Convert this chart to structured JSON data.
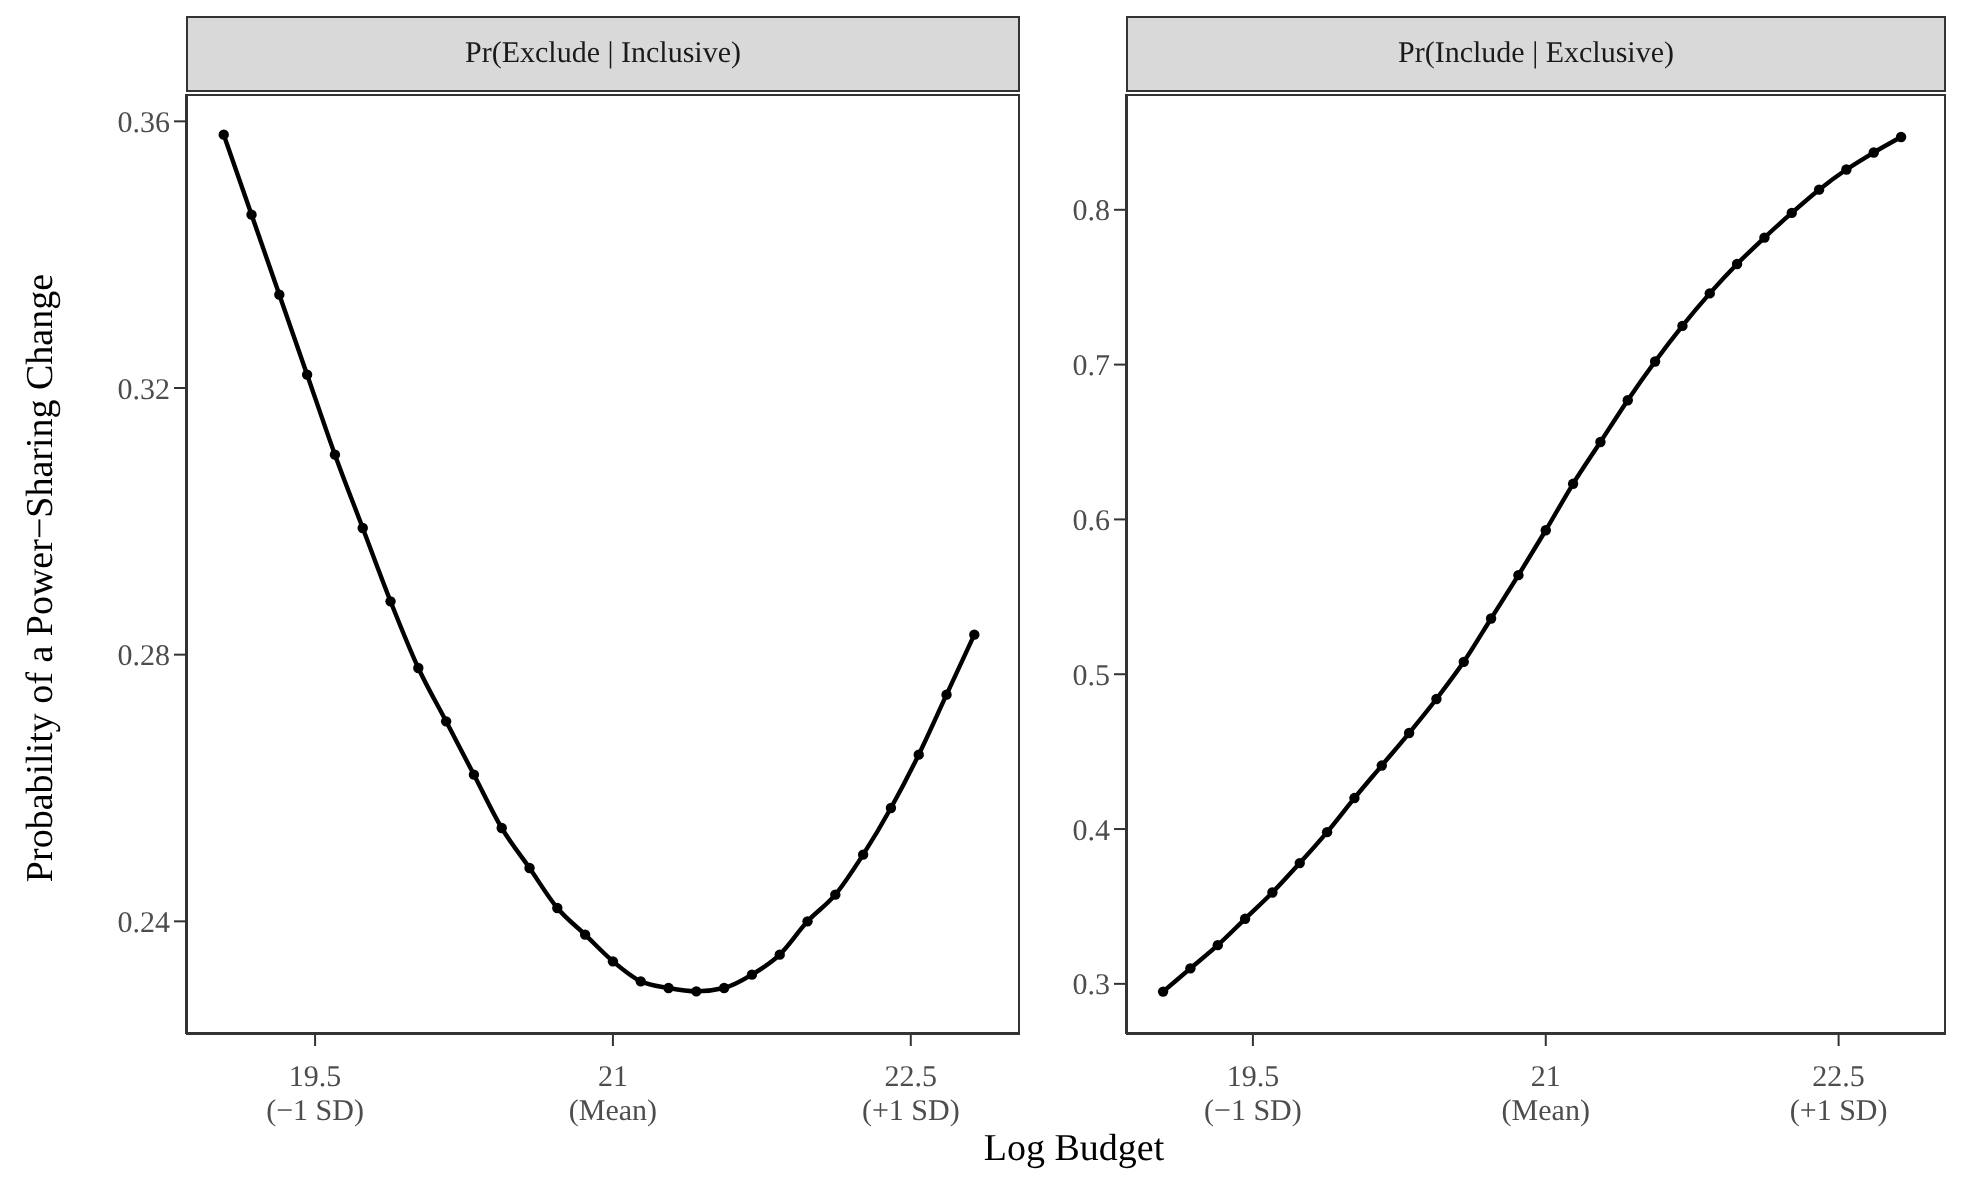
{
  "chart_data": [
    {
      "type": "line",
      "title": "Pr(Exclude | Inclusive)",
      "xlabel": "Log Budget",
      "ylabel": "Probability of a Power−Sharing Change",
      "marker": "circle",
      "x": [
        19.04,
        19.18,
        19.32,
        19.46,
        19.6,
        19.74,
        19.88,
        20.02,
        20.16,
        20.3,
        20.44,
        20.58,
        20.72,
        20.86,
        21.0,
        21.14,
        21.28,
        21.42,
        21.56,
        21.7,
        21.84,
        21.98,
        22.12,
        22.26,
        22.4,
        22.54,
        22.68,
        22.82
      ],
      "series": [
        {
          "color": "#000000",
          "values": [
            0.358,
            0.346,
            0.334,
            0.322,
            0.31,
            0.299,
            0.288,
            0.278,
            0.27,
            0.262,
            0.254,
            0.248,
            0.242,
            0.238,
            0.234,
            0.231,
            0.23,
            0.2295,
            0.23,
            0.232,
            0.235,
            0.24,
            0.244,
            0.25,
            0.257,
            0.265,
            0.274,
            0.283
          ]
        }
      ],
      "xlim": [
        18.85,
        23.05
      ],
      "xticks": [
        19.5,
        21,
        22.5
      ],
      "annotations": [
        "(−1 SD)",
        "(Mean)",
        "(+1 SD)"
      ],
      "ylim": [
        0.2231,
        0.3641
      ],
      "yticks": [
        0.24,
        0.28,
        0.32,
        0.36
      ]
    },
    {
      "type": "line",
      "title": "Pr(Include | Exclusive)",
      "marker": "circle",
      "x": [
        19.04,
        19.18,
        19.32,
        19.46,
        19.6,
        19.74,
        19.88,
        20.02,
        20.16,
        20.3,
        20.44,
        20.58,
        20.72,
        20.86,
        21.0,
        21.14,
        21.28,
        21.42,
        21.56,
        21.7,
        21.84,
        21.98,
        22.12,
        22.26,
        22.4,
        22.54,
        22.68,
        22.82
      ],
      "series": [
        {
          "color": "#000000",
          "values": [
            0.295,
            0.31,
            0.325,
            0.342,
            0.359,
            0.378,
            0.398,
            0.42,
            0.441,
            0.462,
            0.484,
            0.508,
            0.536,
            0.564,
            0.593,
            0.623,
            0.65,
            0.677,
            0.702,
            0.725,
            0.746,
            0.765,
            0.782,
            0.798,
            0.813,
            0.826,
            0.837,
            0.847
          ]
        }
      ],
      "xlim": [
        18.85,
        23.05
      ],
      "xticks": [
        19.5,
        21,
        22.5
      ],
      "annotations": [
        "(−1 SD)",
        "(Mean)",
        "(+1 SD)"
      ],
      "ylim": [
        0.2676,
        0.8748
      ],
      "yticks": [
        0.3,
        0.4,
        0.5,
        0.6,
        0.7,
        0.8
      ]
    }
  ]
}
